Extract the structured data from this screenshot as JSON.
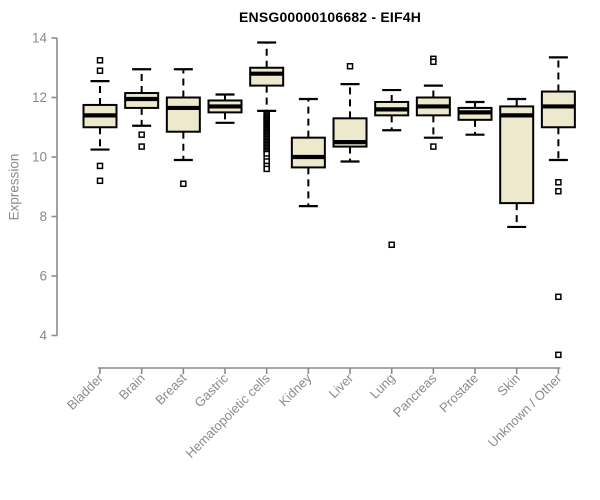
{
  "chart_data": {
    "type": "boxplot",
    "title": "ENSG00000106682 - EIF4H",
    "ylabel": "Expression",
    "yticks": [
      4,
      6,
      8,
      10,
      12,
      14
    ],
    "ylim": [
      3.3,
      14
    ],
    "grid": false,
    "legend": "none",
    "colors": {
      "box_fill": "#EEE8CD",
      "box_stroke": "#000000",
      "median": "#000000",
      "outlier_fill": "#FFFFFF",
      "axis": "#8B8B8B",
      "axis_text": "#8B8B8B",
      "title_text": "#000000",
      "background": "#FFFFFF"
    },
    "categories": [
      {
        "label": "Bladder",
        "whisker_low": 10.25,
        "q1": 11.0,
        "median": 11.4,
        "q3": 11.75,
        "whisker_high": 12.55,
        "outliers": [
          13.25,
          12.9,
          9.7,
          9.2
        ]
      },
      {
        "label": "Brain",
        "whisker_low": 11.05,
        "q1": 11.65,
        "median": 11.95,
        "q3": 12.15,
        "whisker_high": 12.95,
        "outliers": [
          10.75,
          10.35
        ]
      },
      {
        "label": "Breast",
        "whisker_low": 9.9,
        "q1": 10.85,
        "median": 11.65,
        "q3": 12.0,
        "whisker_high": 12.95,
        "outliers": [
          9.1
        ]
      },
      {
        "label": "Gastric",
        "whisker_low": 11.15,
        "q1": 11.5,
        "median": 11.7,
        "q3": 11.9,
        "whisker_high": 12.1,
        "outliers": []
      },
      {
        "label": "Hematopoietic cells",
        "whisker_low": 11.55,
        "q1": 12.4,
        "median": 12.8,
        "q3": 13.0,
        "whisker_high": 13.85,
        "outliers": [
          11.45,
          11.4,
          11.35,
          11.3,
          11.25,
          11.2,
          11.15,
          11.1,
          11.05,
          11.0,
          10.95,
          10.9,
          10.85,
          10.8,
          10.75,
          10.7,
          10.65,
          10.6,
          10.55,
          10.5,
          10.45,
          10.4,
          10.35,
          10.3,
          10.25,
          10.2,
          10.15,
          10.1,
          9.95,
          9.85,
          9.7,
          9.6
        ]
      },
      {
        "label": "Kidney",
        "whisker_low": 8.35,
        "q1": 9.65,
        "median": 10.0,
        "q3": 10.65,
        "whisker_high": 11.95,
        "outliers": []
      },
      {
        "label": "Liver",
        "whisker_low": 9.85,
        "q1": 10.35,
        "median": 10.5,
        "q3": 11.3,
        "whisker_high": 12.45,
        "outliers": [
          13.05
        ]
      },
      {
        "label": "Lung",
        "whisker_low": 10.9,
        "q1": 11.4,
        "median": 11.6,
        "q3": 11.85,
        "whisker_high": 12.25,
        "outliers": [
          7.05
        ]
      },
      {
        "label": "Pancreas",
        "whisker_low": 10.65,
        "q1": 11.4,
        "median": 11.7,
        "q3": 12.0,
        "whisker_high": 12.4,
        "outliers": [
          13.3,
          13.2,
          10.35
        ]
      },
      {
        "label": "Prostate",
        "whisker_low": 10.75,
        "q1": 11.25,
        "median": 11.5,
        "q3": 11.65,
        "whisker_high": 11.85,
        "outliers": []
      },
      {
        "label": "Skin",
        "whisker_low": 7.65,
        "q1": 8.45,
        "median": 11.4,
        "q3": 11.7,
        "whisker_high": 11.95,
        "outliers": []
      },
      {
        "label": "Unknown / Other",
        "whisker_low": 9.9,
        "q1": 11.0,
        "median": 11.7,
        "q3": 12.2,
        "whisker_high": 13.35,
        "outliers": [
          9.15,
          8.85,
          5.3,
          3.35
        ]
      }
    ]
  }
}
